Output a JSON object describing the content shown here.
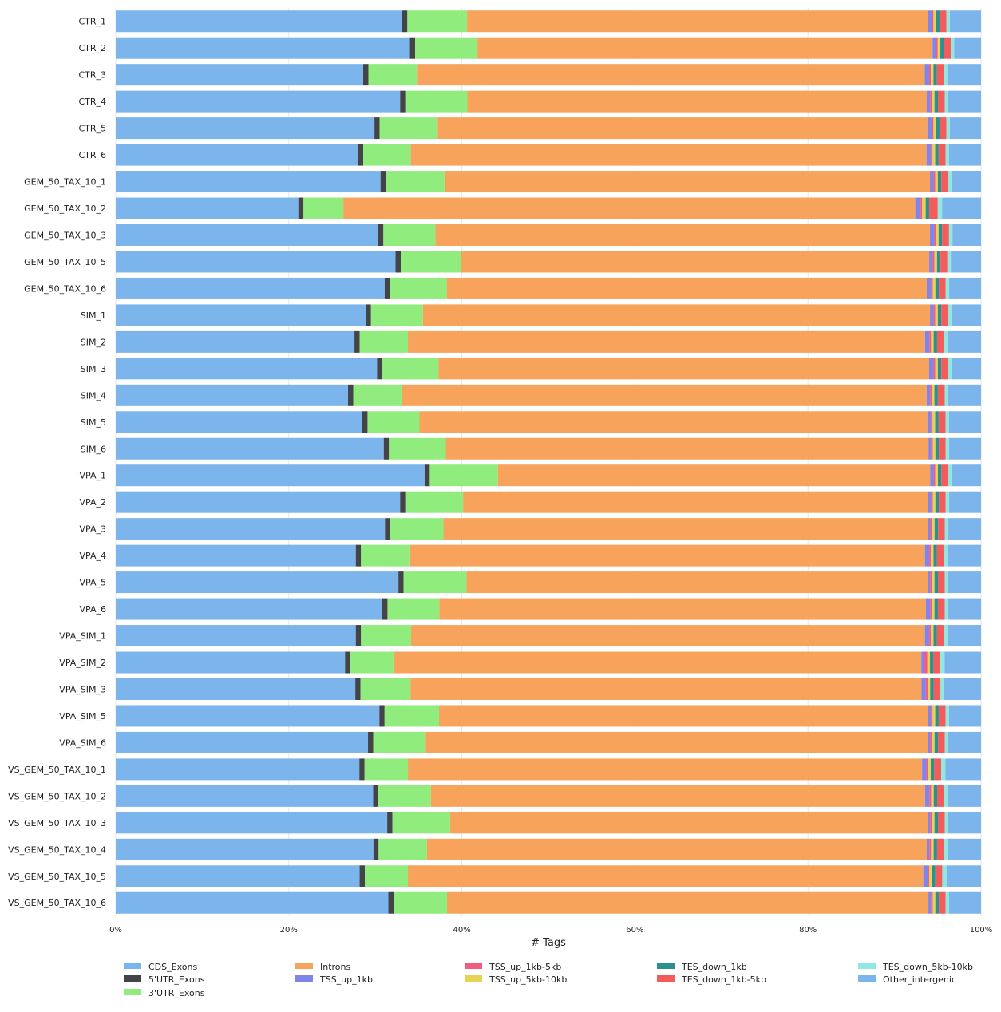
{
  "chart_data": {
    "type": "bar",
    "orientation": "horizontal",
    "stacked": true,
    "normalized_percent": true,
    "xlabel": "# Tags",
    "ylabel": "",
    "xlim": [
      0,
      100
    ],
    "xticks": [
      "0%",
      "20%",
      "40%",
      "60%",
      "80%",
      "100%"
    ],
    "grid": "vertical",
    "legend_position": "bottom",
    "categories": [
      "CTR_1",
      "CTR_2",
      "CTR_3",
      "CTR_4",
      "CTR_5",
      "CTR_6",
      "GEM_50_TAX_10_1",
      "GEM_50_TAX_10_2",
      "GEM_50_TAX_10_3",
      "GEM_50_TAX_10_5",
      "GEM_50_TAX_10_6",
      "SIM_1",
      "SIM_2",
      "SIM_3",
      "SIM_4",
      "SIM_5",
      "SIM_6",
      "VPA_1",
      "VPA_2",
      "VPA_3",
      "VPA_4",
      "VPA_5",
      "VPA_6",
      "VPA_SIM_1",
      "VPA_SIM_2",
      "VPA_SIM_3",
      "VPA_SIM_5",
      "VPA_SIM_6",
      "VS_GEM_50_TAX_10_1",
      "VS_GEM_50_TAX_10_2",
      "VS_GEM_50_TAX_10_3",
      "VS_GEM_50_TAX_10_4",
      "VS_GEM_50_TAX_10_5",
      "VS_GEM_50_TAX_10_6"
    ],
    "series": [
      {
        "name": "CDS_Exons",
        "color": "#7cb5ec",
        "values": [
          33.1,
          34.0,
          28.6,
          33.0,
          29.9,
          28.0,
          30.6,
          21.1,
          30.3,
          32.4,
          31.2,
          28.9,
          27.7,
          30.2,
          26.9,
          28.5,
          31.1,
          35.8,
          33.0,
          31.3,
          27.8,
          32.8,
          30.9,
          27.8,
          26.5,
          27.8,
          30.5,
          29.3,
          28.1,
          29.9,
          31.5,
          29.9,
          28.3,
          31.6
        ]
      },
      {
        "name": "5'UTR_Exons",
        "color": "#434348",
        "values": [
          0.6,
          0.6,
          0.6,
          0.6,
          0.6,
          0.6,
          0.6,
          0.6,
          0.6,
          0.6,
          0.6,
          0.6,
          0.6,
          0.6,
          0.6,
          0.6,
          0.6,
          0.6,
          0.6,
          0.6,
          0.6,
          0.6,
          0.6,
          0.6,
          0.6,
          0.6,
          0.6,
          0.6,
          0.6,
          0.6,
          0.6,
          0.6,
          0.6,
          0.6
        ]
      },
      {
        "name": "3'UTR_Exons",
        "color": "#90ed7d",
        "values": [
          6.9,
          7.2,
          5.7,
          7.2,
          6.7,
          5.5,
          6.8,
          4.6,
          6.0,
          7.0,
          6.6,
          6.0,
          5.6,
          6.5,
          5.6,
          6.0,
          6.6,
          7.9,
          6.7,
          6.2,
          5.7,
          7.3,
          6.0,
          5.8,
          5.0,
          5.8,
          6.3,
          6.1,
          5.0,
          6.1,
          6.7,
          5.6,
          5.0,
          6.2
        ]
      },
      {
        "name": "Introns",
        "color": "#f7a35c",
        "values": [
          53.3,
          52.6,
          58.6,
          53.3,
          56.6,
          59.6,
          56.1,
          66.1,
          57.1,
          54.2,
          55.7,
          58.6,
          60.0,
          56.7,
          60.8,
          58.7,
          56.0,
          50.1,
          53.9,
          56.3,
          59.6,
          53.5,
          56.4,
          59.5,
          61.0,
          59.3,
          56.6,
          58.3,
          59.3,
          57.4,
          55.4,
          58.0,
          59.8,
          55.8
        ]
      },
      {
        "name": "TSS_up_1kb",
        "color": "#8085e9",
        "values": [
          0.4,
          0.4,
          0.5,
          0.4,
          0.5,
          0.5,
          0.4,
          0.6,
          0.5,
          0.4,
          0.5,
          0.4,
          0.5,
          0.5,
          0.4,
          0.4,
          0.3,
          0.4,
          0.4,
          0.3,
          0.5,
          0.3,
          0.5,
          0.5,
          0.3,
          0.5,
          0.3,
          0.3,
          0.5,
          0.5,
          0.3,
          0.3,
          0.5,
          0.3
        ]
      },
      {
        "name": "TSS_up_1kb-5kb",
        "color": "#f15c80",
        "values": [
          0.2,
          0.2,
          0.2,
          0.2,
          0.2,
          0.2,
          0.2,
          0.2,
          0.2,
          0.2,
          0.2,
          0.2,
          0.2,
          0.2,
          0.2,
          0.2,
          0.2,
          0.2,
          0.2,
          0.2,
          0.2,
          0.2,
          0.2,
          0.2,
          0.4,
          0.2,
          0.2,
          0.2,
          0.2,
          0.2,
          0.2,
          0.2,
          0.2,
          0.2
        ]
      },
      {
        "name": "TSS_up_5kb-10kb",
        "color": "#e4d354",
        "values": [
          0.3,
          0.3,
          0.3,
          0.3,
          0.3,
          0.3,
          0.3,
          0.4,
          0.3,
          0.3,
          0.3,
          0.3,
          0.3,
          0.3,
          0.3,
          0.3,
          0.3,
          0.3,
          0.3,
          0.3,
          0.3,
          0.3,
          0.3,
          0.3,
          0.3,
          0.3,
          0.3,
          0.3,
          0.3,
          0.3,
          0.3,
          0.3,
          0.3,
          0.3
        ]
      },
      {
        "name": "TES_down_1kb",
        "color": "#2b908f",
        "values": [
          0.4,
          0.4,
          0.4,
          0.4,
          0.4,
          0.4,
          0.4,
          0.4,
          0.4,
          0.4,
          0.4,
          0.4,
          0.4,
          0.4,
          0.4,
          0.4,
          0.4,
          0.4,
          0.4,
          0.4,
          0.4,
          0.4,
          0.4,
          0.4,
          0.4,
          0.4,
          0.4,
          0.4,
          0.4,
          0.4,
          0.4,
          0.4,
          0.4,
          0.4
        ]
      },
      {
        "name": "TES_down_1kb-5kb",
        "color": "#f45b5b",
        "values": [
          0.8,
          0.8,
          0.8,
          0.8,
          0.8,
          0.8,
          0.8,
          1.0,
          0.8,
          0.8,
          0.8,
          0.8,
          0.8,
          0.8,
          0.8,
          0.8,
          0.8,
          0.8,
          0.8,
          0.8,
          0.8,
          0.8,
          0.8,
          0.8,
          0.8,
          0.8,
          0.8,
          0.8,
          0.8,
          0.8,
          0.8,
          0.8,
          0.8,
          0.8
        ]
      },
      {
        "name": "TES_down_5kb-10kb",
        "color": "#91e8e1",
        "values": [
          0.4,
          0.4,
          0.4,
          0.4,
          0.4,
          0.4,
          0.4,
          0.5,
          0.4,
          0.4,
          0.4,
          0.4,
          0.4,
          0.4,
          0.4,
          0.4,
          0.4,
          0.4,
          0.4,
          0.4,
          0.4,
          0.4,
          0.4,
          0.4,
          0.5,
          0.4,
          0.4,
          0.4,
          0.5,
          0.5,
          0.4,
          0.4,
          0.5,
          0.4
        ]
      },
      {
        "name": "Other_intergenic",
        "color": "#7cb5ec",
        "values": [
          3.6,
          3.1,
          3.9,
          3.8,
          3.6,
          3.7,
          3.4,
          4.5,
          3.3,
          3.5,
          3.7,
          3.4,
          3.9,
          3.4,
          3.8,
          3.7,
          3.7,
          3.4,
          3.7,
          3.8,
          3.9,
          3.8,
          3.8,
          3.9,
          4.2,
          4.3,
          3.7,
          3.8,
          4.1,
          3.8,
          3.8,
          3.9,
          4.0,
          3.7
        ]
      }
    ]
  }
}
